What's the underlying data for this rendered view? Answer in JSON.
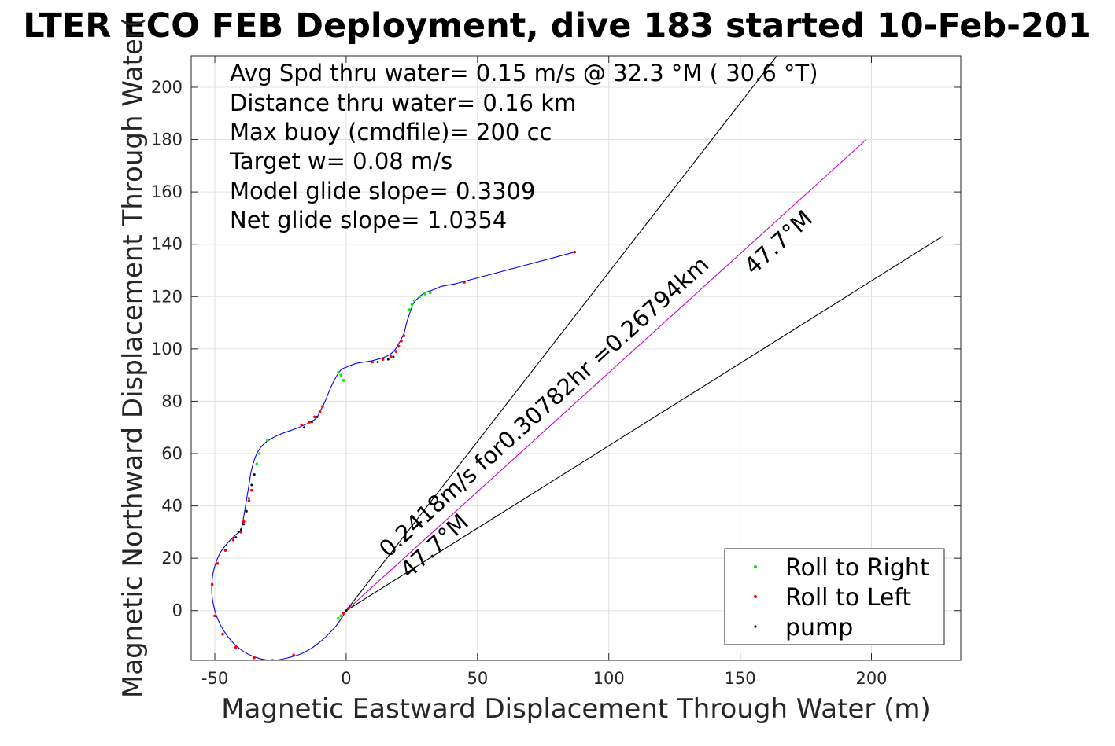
{
  "chart_data": {
    "type": "line",
    "title": "LTER ECO FEB Deployment, dive 183 started 10-Feb-201",
    "xlabel": "Magnetic Eastward Displacement Through Water (m)",
    "ylabel": "Magnetic Northward Displacement Through Water(",
    "xlim": [
      -59,
      234
    ],
    "ylim": [
      -19,
      212
    ],
    "xticks": [
      -50,
      0,
      50,
      100,
      150,
      200
    ],
    "yticks": [
      0,
      20,
      40,
      60,
      80,
      100,
      120,
      140,
      160,
      180,
      200
    ],
    "grid": true,
    "legend_position": "bottom-right",
    "info_text": [
      "Avg Spd thru water=  0.15 m/s @  32.3 °M ( 30.6 °T)",
      "Distance thru water=  0.16 km",
      "Max buoy (cmdfile)= 200 cc",
      "Target w= 0.08 m/s",
      "Model glide slope= 0.3309",
      "Net glide slope= 1.0354"
    ],
    "track": {
      "name": "track",
      "color": "#0000ff",
      "x": [
        0,
        -4,
        -10,
        -16,
        -22,
        -28,
        -34,
        -40,
        -45,
        -49,
        -51,
        -51,
        -50,
        -48,
        -45,
        -42,
        -40,
        -39,
        -38,
        -37,
        -36,
        -34,
        -31,
        -26,
        -18,
        -12,
        -10,
        -8,
        -6,
        -4,
        -2,
        0,
        4,
        10,
        15,
        18,
        20,
        22,
        23,
        24,
        25,
        26,
        28,
        30,
        33,
        36,
        38,
        42,
        45,
        87
      ],
      "y": [
        0,
        -6,
        -12,
        -16,
        -18,
        -19,
        -18,
        -15,
        -10,
        -3,
        5,
        12,
        17,
        22,
        26,
        29,
        31,
        36,
        42,
        48,
        54,
        60,
        64,
        67,
        70,
        73,
        76,
        80,
        85,
        89,
        92,
        93,
        94.5,
        95.5,
        97,
        99,
        102,
        106,
        110,
        113,
        116,
        118,
        120,
        121.5,
        122.5,
        123.8,
        124.2,
        125,
        125.8,
        137
      ]
    },
    "heading_lines": [
      {
        "name": "left-bound-line",
        "x": [
          0,
          164
        ],
        "y": [
          0,
          212
        ]
      },
      {
        "name": "right-bound-line",
        "x": [
          0,
          227
        ],
        "y": [
          0,
          143
        ]
      },
      {
        "name": "mean-heading-line",
        "color": "#cc00cc",
        "x": [
          0,
          198
        ],
        "y": [
          0,
          180
        ]
      }
    ],
    "annotations": [
      {
        "name": "speed-annotation",
        "text": "0.2418m/s for0.30782hr =0.26794km",
        "x": 16,
        "y": 20
      },
      {
        "name": "heading-label-upper",
        "text": "47.7°M",
        "x": 155,
        "y": 128
      },
      {
        "name": "heading-label-lower",
        "text": "47.7°M",
        "x": 24,
        "y": 12
      }
    ],
    "legend": [
      {
        "name": "roll-right",
        "label": "Roll to Right",
        "color": "#00ee00"
      },
      {
        "name": "roll-left",
        "label": "Roll to Left",
        "color": "#ff0000"
      },
      {
        "name": "pump",
        "label": "pump",
        "color": "#000000"
      }
    ],
    "roll_right_points": {
      "x": [
        -2,
        -3,
        -35,
        -34,
        -33,
        -30,
        -1,
        -2,
        -3,
        24,
        25,
        26,
        28,
        30,
        32
      ],
      "y": [
        -2,
        -3,
        52,
        56,
        60,
        65,
        88,
        90,
        91,
        115,
        117,
        118.5,
        120,
        121,
        121.5
      ]
    },
    "roll_left_points": {
      "x": [
        -1,
        0,
        1,
        -20,
        -28,
        -35,
        -42,
        -47,
        -50,
        -51,
        -49,
        -46,
        -43,
        -40,
        -39,
        -38,
        -37,
        -36,
        -17,
        -14,
        -12,
        -10,
        -9,
        10,
        14,
        17,
        19,
        20,
        21,
        22,
        45,
        87
      ],
      "y": [
        -1,
        0,
        1,
        -17,
        -19,
        -18,
        -14,
        -9,
        -2,
        10,
        18,
        23,
        27,
        30,
        34,
        38,
        42,
        46,
        71,
        72,
        74,
        76,
        78,
        95,
        96,
        97,
        99,
        101,
        103,
        105,
        125.5,
        137
      ]
    },
    "pump_points": {
      "x": [
        0,
        -42,
        -41,
        -40,
        -39,
        -38,
        -37,
        -36,
        -35,
        -16,
        -13,
        -11,
        12,
        16,
        18
      ],
      "y": [
        0,
        28,
        30,
        31,
        33,
        38,
        43,
        48,
        52,
        70,
        72,
        74,
        95,
        96,
        97
      ]
    }
  }
}
